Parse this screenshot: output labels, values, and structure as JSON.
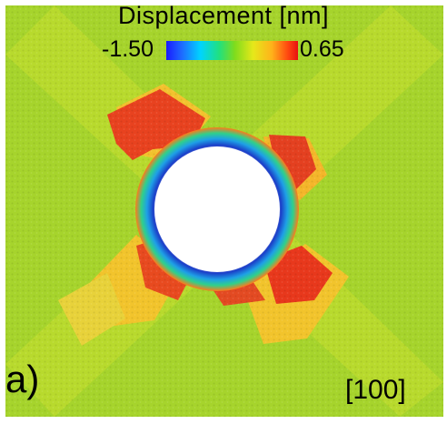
{
  "colorbar": {
    "title": "Displacement [nm]",
    "min_label": "-1.50",
    "max_label": "0.65",
    "colormap": [
      "#1a1aff",
      "#00d4ff",
      "#20e080",
      "#7fdc1c",
      "#e6e81a",
      "#ffb31a",
      "#e81010"
    ]
  },
  "panel_label": "a)",
  "orientation_label": "[100]",
  "colors": {
    "background_field": "#9ed12a",
    "band_yellow": "#e8d83a",
    "lobe_red": "#e23a22",
    "ring_blue": "#1b3dc8",
    "hole": "#ffffff"
  }
}
